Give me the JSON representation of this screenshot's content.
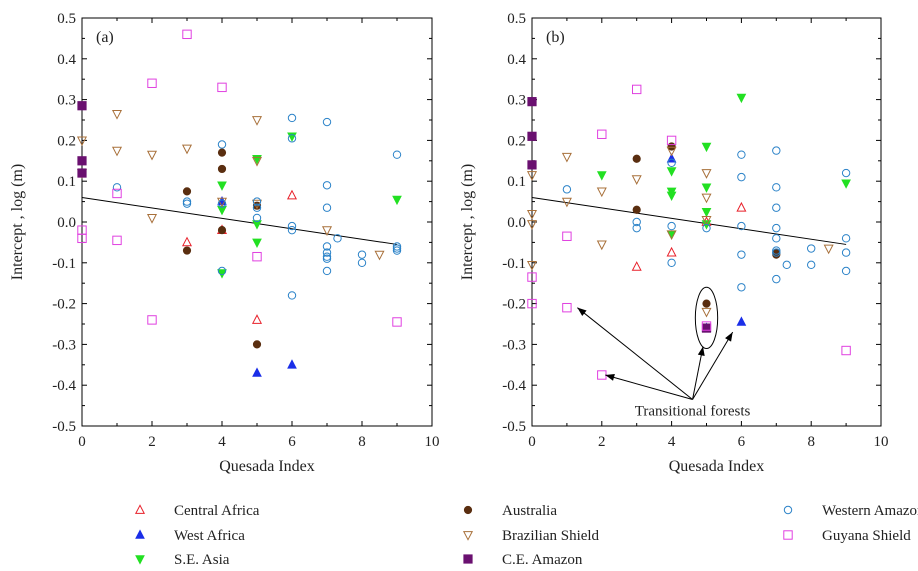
{
  "colors": {
    "central_africa": "#e8202a",
    "west_africa": "#1a2ee8",
    "se_asia": "#22e022",
    "ce_amazon": "#6a1070",
    "australia": "#5a2e10",
    "brazilian_shield": "#a8703a",
    "western_amazon": "#2a82c8",
    "guyana_shield": "#e040e0",
    "regression": "#000000"
  },
  "legend": [
    {
      "key": "central_africa",
      "label": "Central Africa",
      "marker": "triangle-up-open"
    },
    {
      "key": "west_africa",
      "label": "West Africa",
      "marker": "triangle-up-filled"
    },
    {
      "key": "se_asia",
      "label": "S.E. Asia",
      "marker": "triangle-down-filled"
    },
    {
      "key": "australia",
      "label": "Australia",
      "marker": "circle-filled"
    },
    {
      "key": "brazilian_shield",
      "label": "Brazilian Shield",
      "marker": "triangle-down-open"
    },
    {
      "key": "ce_amazon",
      "label": "C.E. Amazon",
      "marker": "square-filled"
    },
    {
      "key": "western_amazon",
      "label": "Western Amazon",
      "marker": "circle-open"
    },
    {
      "key": "guyana_shield",
      "label": "Guyana Shield",
      "marker": "square-open"
    }
  ],
  "chart_data": [
    {
      "type": "scatter",
      "panel_label": "(a)",
      "xlabel": "Quesada Index",
      "ylabel": "Intercept , log (m)",
      "xlim": [
        0,
        10
      ],
      "ylim": [
        -0.5,
        0.5
      ],
      "xticks": [
        "0",
        "2",
        "4",
        "6",
        "8",
        "10"
      ],
      "yticks": [
        "-0.5",
        "-0.4",
        "-0.3",
        "-0.2",
        "-0.1",
        "0.0",
        "0.1",
        "0.2",
        "0.3",
        "0.4",
        "0.5"
      ],
      "regression": {
        "x": [
          0,
          9
        ],
        "y": [
          0.06,
          -0.055
        ]
      },
      "series": [
        {
          "name": "Central Africa",
          "key": "central_africa",
          "points": [
            [
              3,
              -0.05
            ],
            [
              4,
              -0.02
            ],
            [
              5,
              -0.24
            ],
            [
              6,
              0.065
            ]
          ]
        },
        {
          "name": "West Africa",
          "key": "west_africa",
          "points": [
            [
              4,
              0.05
            ],
            [
              5,
              -0.37
            ],
            [
              6,
              -0.35
            ]
          ]
        },
        {
          "name": "S.E. Asia",
          "key": "se_asia",
          "points": [
            [
              4,
              0.09
            ],
            [
              4,
              0.03
            ],
            [
              4,
              -0.125
            ],
            [
              5,
              0.155
            ],
            [
              5,
              -0.005
            ],
            [
              5,
              -0.05
            ],
            [
              6,
              0.21
            ],
            [
              9,
              0.055
            ]
          ]
        },
        {
          "name": "Australia",
          "key": "australia",
          "points": [
            [
              0,
              0.12
            ],
            [
              3,
              0.075
            ],
            [
              3,
              -0.07
            ],
            [
              4,
              0.17
            ],
            [
              4,
              0.13
            ],
            [
              4,
              -0.02
            ],
            [
              5,
              0.04
            ],
            [
              5,
              -0.3
            ]
          ]
        },
        {
          "name": "Brazilian Shield",
          "key": "brazilian_shield",
          "points": [
            [
              0,
              0.2
            ],
            [
              0,
              0.12
            ],
            [
              1,
              0.265
            ],
            [
              1,
              0.175
            ],
            [
              2,
              0.165
            ],
            [
              2,
              0.01
            ],
            [
              3,
              0.18
            ],
            [
              4,
              0.05
            ],
            [
              5,
              0.25
            ],
            [
              5,
              0.15
            ],
            [
              5,
              0.045
            ],
            [
              7,
              -0.02
            ],
            [
              8.5,
              -0.08
            ]
          ]
        },
        {
          "name": "C.E. Amazon",
          "key": "ce_amazon",
          "points": [
            [
              0,
              0.285
            ],
            [
              0,
              0.15
            ],
            [
              0,
              0.12
            ]
          ]
        },
        {
          "name": "Western Amazon",
          "key": "western_amazon",
          "points": [
            [
              1,
              0.085
            ],
            [
              3,
              0.05
            ],
            [
              3,
              0.045
            ],
            [
              4,
              0.19
            ],
            [
              4,
              0.045
            ],
            [
              4,
              -0.12
            ],
            [
              5,
              0.05
            ],
            [
              5,
              0.035
            ],
            [
              5,
              0.01
            ],
            [
              6,
              0.255
            ],
            [
              6,
              0.205
            ],
            [
              6,
              -0.01
            ],
            [
              6,
              -0.02
            ],
            [
              6,
              -0.18
            ],
            [
              7,
              0.245
            ],
            [
              7,
              0.09
            ],
            [
              7,
              0.035
            ],
            [
              7,
              -0.06
            ],
            [
              7,
              -0.075
            ],
            [
              7,
              -0.085
            ],
            [
              7,
              -0.09
            ],
            [
              7,
              -0.12
            ],
            [
              7.3,
              -0.04
            ],
            [
              8,
              -0.08
            ],
            [
              8,
              -0.1
            ],
            [
              9,
              0.165
            ],
            [
              9,
              -0.06
            ],
            [
              9,
              -0.065
            ],
            [
              9,
              -0.07
            ]
          ]
        },
        {
          "name": "Guyana Shield",
          "key": "guyana_shield",
          "points": [
            [
              0,
              -0.02
            ],
            [
              0,
              -0.04
            ],
            [
              1,
              0.07
            ],
            [
              1,
              -0.045
            ],
            [
              2,
              0.34
            ],
            [
              2,
              -0.24
            ],
            [
              3,
              0.46
            ],
            [
              4,
              0.33
            ],
            [
              5,
              -0.085
            ],
            [
              9,
              -0.245
            ]
          ]
        }
      ]
    },
    {
      "type": "scatter",
      "panel_label": "(b)",
      "xlabel": "Quesada Index",
      "ylabel": "Intercept , log (m)",
      "xlim": [
        0,
        10
      ],
      "ylim": [
        -0.5,
        0.5
      ],
      "xticks": [
        "0",
        "2",
        "4",
        "6",
        "8",
        "10"
      ],
      "yticks": [
        "-0.5",
        "-0.4",
        "-0.3",
        "-0.2",
        "-0.1",
        "0.0",
        "0.1",
        "0.2",
        "0.3",
        "0.4",
        "0.5"
      ],
      "regression": {
        "x": [
          0,
          9
        ],
        "y": [
          0.06,
          -0.055
        ]
      },
      "annotation": {
        "text": "Transitional forests",
        "anchor": [
          4.6,
          -0.435
        ],
        "targets": [
          [
            1.3,
            -0.21
          ],
          [
            2.1,
            -0.375
          ],
          [
            4.9,
            -0.305
          ],
          [
            5.75,
            -0.27
          ]
        ],
        "ellipse": {
          "cx": 5,
          "cy": -0.235,
          "rx": 0.32,
          "ry": 0.075
        }
      },
      "series": [
        {
          "name": "Central Africa",
          "key": "central_africa",
          "points": [
            [
              3,
              -0.11
            ],
            [
              4,
              -0.075
            ],
            [
              5,
              0.0
            ],
            [
              6,
              0.035
            ]
          ]
        },
        {
          "name": "West Africa",
          "key": "west_africa",
          "points": [
            [
              4,
              0.155
            ],
            [
              5,
              -0.26
            ],
            [
              6,
              -0.245
            ]
          ]
        },
        {
          "name": "S.E. Asia",
          "key": "se_asia",
          "points": [
            [
              2,
              0.115
            ],
            [
              4,
              0.125
            ],
            [
              4,
              0.075
            ],
            [
              4,
              0.065
            ],
            [
              4,
              -0.03
            ],
            [
              5,
              0.185
            ],
            [
              5,
              0.085
            ],
            [
              5,
              0.025
            ],
            [
              5,
              -0.005
            ],
            [
              6,
              0.305
            ],
            [
              9,
              0.095
            ]
          ]
        },
        {
          "name": "Australia",
          "key": "australia",
          "points": [
            [
              3,
              0.155
            ],
            [
              3,
              0.03
            ],
            [
              4,
              0.185
            ],
            [
              5,
              -0.2
            ],
            [
              7,
              -0.075
            ],
            [
              7,
              -0.08
            ]
          ]
        },
        {
          "name": "Brazilian Shield",
          "key": "brazilian_shield",
          "points": [
            [
              0,
              0.115
            ],
            [
              0,
              0.02
            ],
            [
              0,
              -0.005
            ],
            [
              0,
              -0.105
            ],
            [
              1,
              0.16
            ],
            [
              1,
              0.05
            ],
            [
              2,
              0.075
            ],
            [
              2,
              -0.055
            ],
            [
              3,
              0.105
            ],
            [
              4,
              0.175
            ],
            [
              4,
              -0.03
            ],
            [
              5,
              0.12
            ],
            [
              5,
              0.06
            ],
            [
              5,
              0.005
            ],
            [
              5,
              -0.22
            ],
            [
              8.5,
              -0.065
            ]
          ]
        },
        {
          "name": "C.E. Amazon",
          "key": "ce_amazon",
          "points": [
            [
              0,
              0.295
            ],
            [
              0,
              0.21
            ],
            [
              0,
              0.14
            ],
            [
              5,
              -0.26
            ]
          ]
        },
        {
          "name": "Western Amazon",
          "key": "western_amazon",
          "points": [
            [
              1,
              0.08
            ],
            [
              3,
              0.0
            ],
            [
              3,
              -0.015
            ],
            [
              4,
              0.145
            ],
            [
              4,
              -0.01
            ],
            [
              4,
              -0.1
            ],
            [
              5,
              -0.015
            ],
            [
              6,
              0.165
            ],
            [
              6,
              0.11
            ],
            [
              6,
              -0.01
            ],
            [
              6,
              -0.08
            ],
            [
              6,
              -0.16
            ],
            [
              7,
              0.175
            ],
            [
              7,
              0.085
            ],
            [
              7,
              0.035
            ],
            [
              7,
              -0.015
            ],
            [
              7,
              -0.04
            ],
            [
              7,
              -0.07
            ],
            [
              7,
              -0.075
            ],
            [
              7,
              -0.14
            ],
            [
              7.3,
              -0.105
            ],
            [
              8,
              -0.065
            ],
            [
              8,
              -0.105
            ],
            [
              9,
              0.12
            ],
            [
              9,
              -0.04
            ],
            [
              9,
              -0.075
            ],
            [
              9,
              -0.12
            ]
          ]
        },
        {
          "name": "Guyana Shield",
          "key": "guyana_shield",
          "points": [
            [
              0,
              -0.135
            ],
            [
              0,
              -0.2
            ],
            [
              1,
              -0.035
            ],
            [
              1,
              -0.21
            ],
            [
              2,
              0.215
            ],
            [
              2,
              -0.375
            ],
            [
              3,
              0.325
            ],
            [
              4,
              0.2
            ],
            [
              5,
              -0.255
            ],
            [
              9,
              -0.315
            ]
          ]
        }
      ]
    }
  ]
}
